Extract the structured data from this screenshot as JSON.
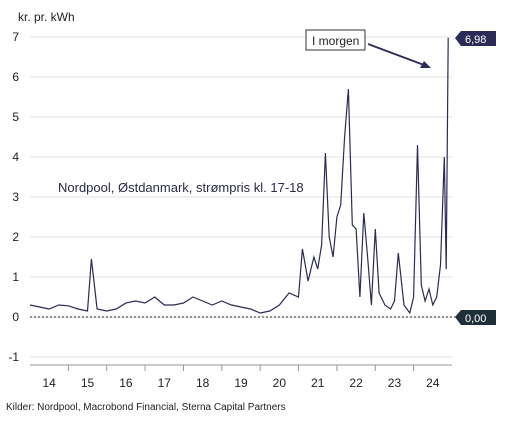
{
  "chart_data": {
    "type": "line",
    "ylabel": "kr. pr. kWh",
    "ylim": [
      -1,
      7
    ],
    "yticks": [
      "-1",
      "0",
      "1",
      "2",
      "3",
      "4",
      "5",
      "6",
      "7"
    ],
    "xticks": [
      "14",
      "15",
      "16",
      "17",
      "18",
      "19",
      "20",
      "21",
      "22",
      "23",
      "24"
    ],
    "xlim": [
      2014.0,
      2025.0
    ],
    "grid": true,
    "annotation": "Nordpool, Østdanmark, strømpris kl. 17-18",
    "callout": "I morgen",
    "badges": {
      "max": "6,98",
      "zero": "0,00"
    },
    "source": "Kilder: Nordpool, Macrobond Financial, Sterna Capital Partners",
    "series": [
      {
        "color": "#2b2b55",
        "x": [
          2014.0,
          2014.25,
          2014.5,
          2014.75,
          2015.0,
          2015.25,
          2015.5,
          2015.6,
          2015.75,
          2016.0,
          2016.25,
          2016.5,
          2016.75,
          2017.0,
          2017.25,
          2017.5,
          2017.75,
          2018.0,
          2018.25,
          2018.5,
          2018.75,
          2019.0,
          2019.25,
          2019.5,
          2019.75,
          2020.0,
          2020.25,
          2020.5,
          2020.75,
          2021.0,
          2021.1,
          2021.25,
          2021.4,
          2021.5,
          2021.6,
          2021.7,
          2021.8,
          2021.9,
          2022.0,
          2022.1,
          2022.2,
          2022.3,
          2022.4,
          2022.5,
          2022.6,
          2022.7,
          2022.8,
          2022.9,
          2023.0,
          2023.1,
          2023.25,
          2023.4,
          2023.5,
          2023.6,
          2023.75,
          2023.9,
          2024.0,
          2024.1,
          2024.2,
          2024.3,
          2024.4,
          2024.5,
          2024.6,
          2024.7,
          2024.8,
          2024.85,
          2024.9
        ],
        "y": [
          0.3,
          0.25,
          0.2,
          0.3,
          0.28,
          0.2,
          0.15,
          1.45,
          0.2,
          0.15,
          0.2,
          0.35,
          0.4,
          0.35,
          0.5,
          0.3,
          0.3,
          0.35,
          0.5,
          0.4,
          0.3,
          0.4,
          0.3,
          0.25,
          0.2,
          0.1,
          0.15,
          0.3,
          0.6,
          0.5,
          1.7,
          0.9,
          1.5,
          1.2,
          1.8,
          4.1,
          2.0,
          1.5,
          2.5,
          2.8,
          4.5,
          5.7,
          2.3,
          2.2,
          0.5,
          2.6,
          1.5,
          0.3,
          2.2,
          0.6,
          0.3,
          0.2,
          0.4,
          1.6,
          0.3,
          0.1,
          0.5,
          4.3,
          0.8,
          0.4,
          0.7,
          0.3,
          0.5,
          1.3,
          4.0,
          1.2,
          6.98
        ]
      }
    ]
  }
}
